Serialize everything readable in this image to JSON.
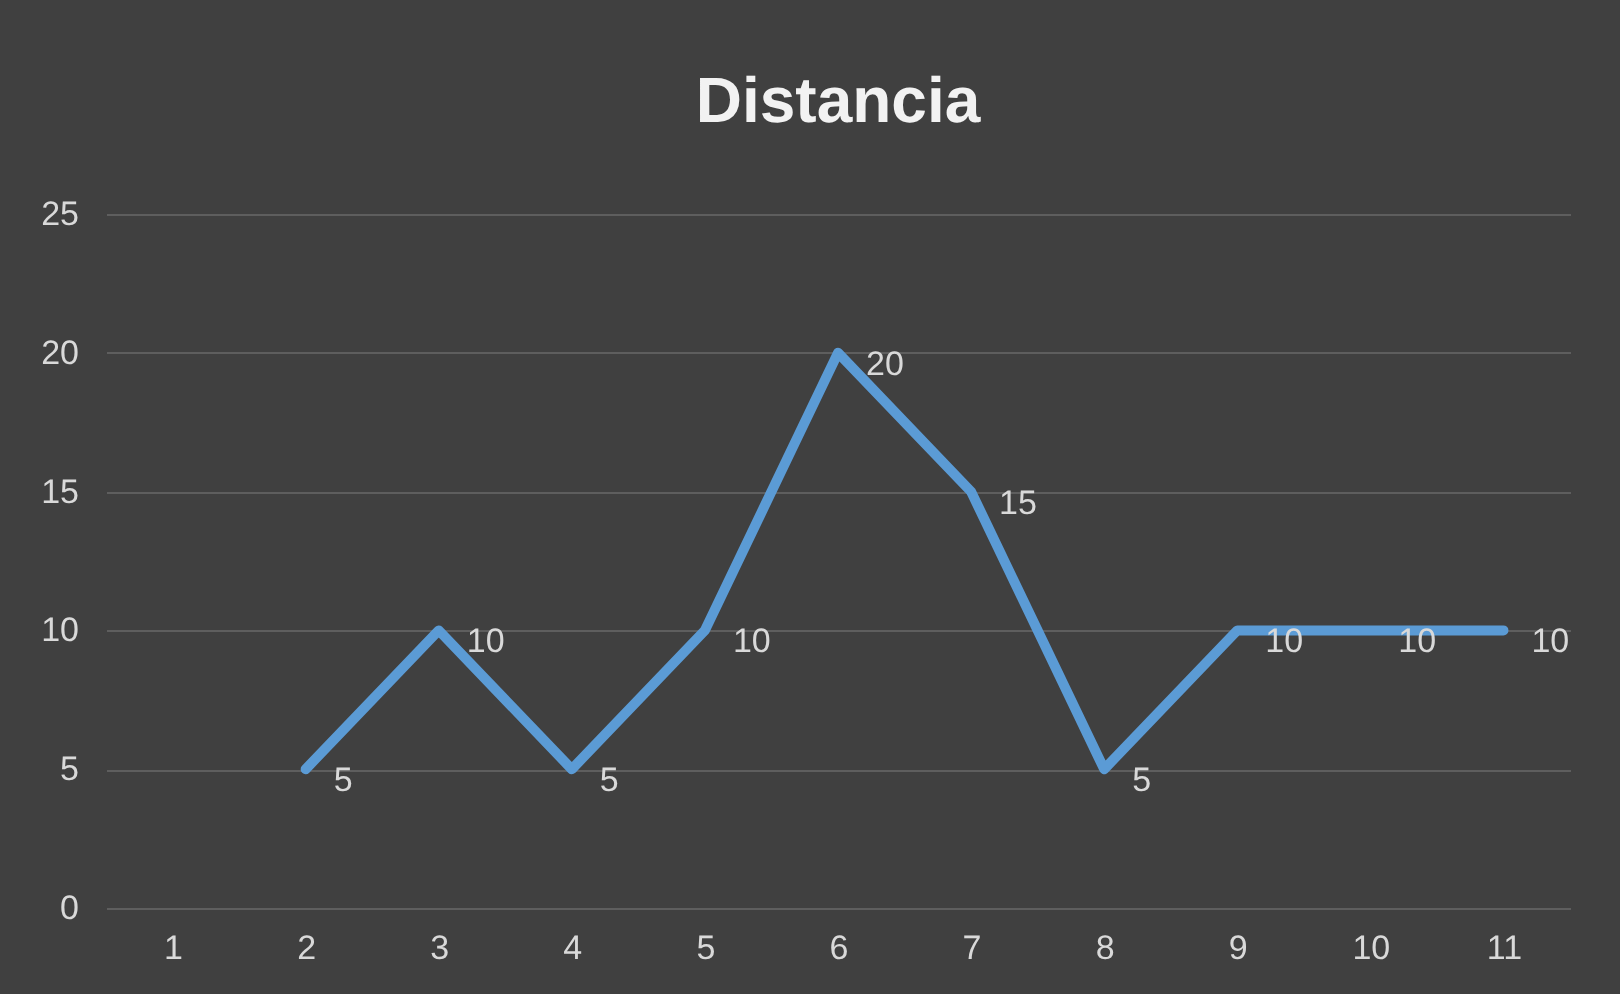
{
  "chart_data": {
    "type": "line",
    "title": "Distancia",
    "categories": [
      "1",
      "2",
      "3",
      "4",
      "5",
      "6",
      "7",
      "8",
      "9",
      "10",
      "11"
    ],
    "series": [
      {
        "color": "#5b9bd5",
        "values": [
          null,
          5,
          10,
          5,
          10,
          20,
          15,
          5,
          10,
          10,
          10
        ]
      }
    ],
    "ylim": [
      0,
      25
    ],
    "yticks": [
      0,
      5,
      10,
      15,
      20,
      25
    ],
    "grid": "y",
    "data_labels": true,
    "marker": "none",
    "line_style": "solid"
  }
}
